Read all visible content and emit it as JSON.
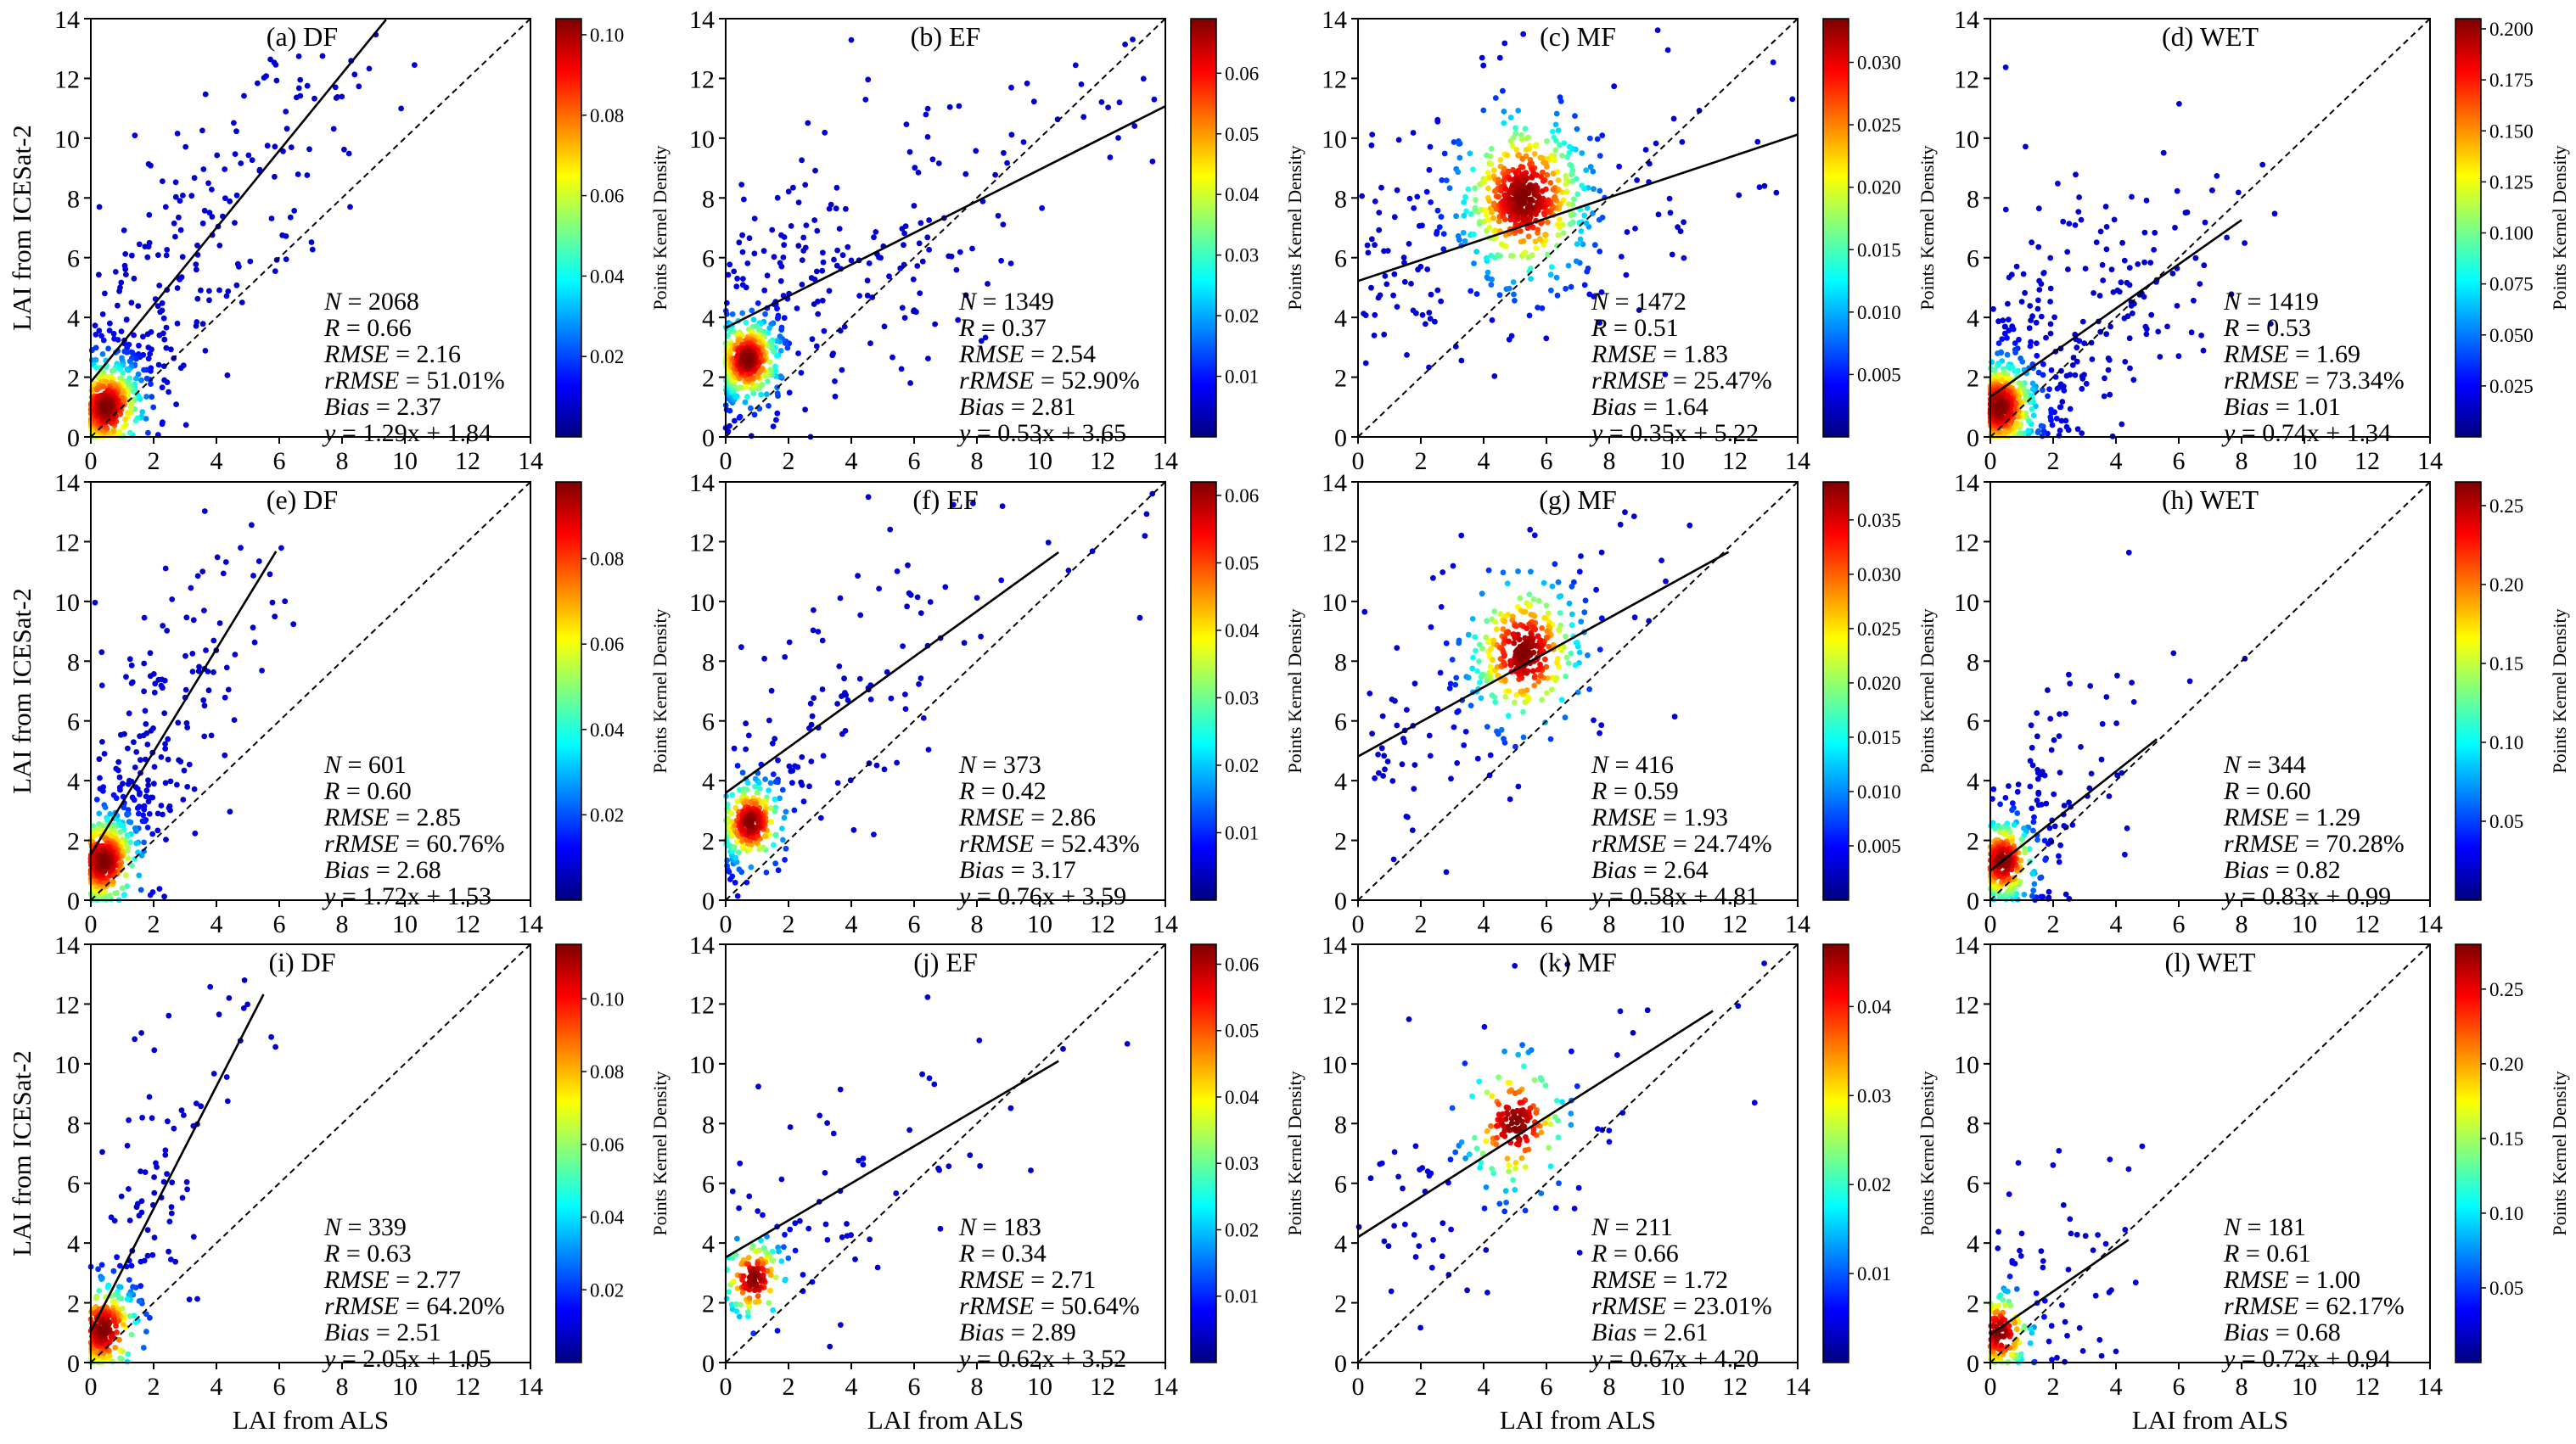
{
  "figure": {
    "xlabel": "LAI from ALS",
    "ylabel": "LAI from ICESat-2",
    "colorbar_label": "Points Kernel Density"
  },
  "chart_data": [
    {
      "id": "a",
      "type": "scatter",
      "title": "(a) DF",
      "xlim": [
        0,
        14
      ],
      "ylim": [
        0,
        14
      ],
      "ticks": [
        0,
        2,
        4,
        6,
        8,
        10,
        12,
        14
      ],
      "stats": {
        "N": "2068",
        "R": "0.66",
        "RMSE": "2.16",
        "rRMSE": "51.01%",
        "Bias": "2.37",
        "fit": "1.29x + 1.84"
      },
      "fit_slope": 1.29,
      "fit_intercept": 1.84,
      "fit_x_end": 9.4,
      "cbar_ticks": [
        "0.02",
        "0.04",
        "0.06",
        "0.08",
        "0.10"
      ],
      "cbar_max": 0.104,
      "cluster": {
        "x": 0.5,
        "y": 1.0,
        "spread": 1.8
      },
      "colorbar": true
    },
    {
      "id": "b",
      "type": "scatter",
      "title": "(b) EF",
      "xlim": [
        0,
        14
      ],
      "ylim": [
        0,
        14
      ],
      "ticks": [
        0,
        2,
        4,
        6,
        8,
        10,
        12,
        14
      ],
      "stats": {
        "N": "1349",
        "R": "0.37",
        "RMSE": "2.54",
        "rRMSE": "52.90%",
        "Bias": "2.81",
        "fit": "0.53x + 3.65"
      },
      "fit_slope": 0.53,
      "fit_intercept": 3.65,
      "fit_x_end": 14,
      "cbar_ticks": [
        "0.01",
        "0.02",
        "0.03",
        "0.04",
        "0.05",
        "0.06"
      ],
      "cbar_max": 0.069,
      "cluster": {
        "x": 0.7,
        "y": 2.6,
        "spread": 1.6
      },
      "colorbar": true
    },
    {
      "id": "c",
      "type": "scatter",
      "title": "(c) MF",
      "xlim": [
        0,
        14
      ],
      "ylim": [
        0,
        14
      ],
      "ticks": [
        0,
        2,
        4,
        6,
        8,
        10,
        12,
        14
      ],
      "stats": {
        "N": "1472",
        "R": "0.51",
        "RMSE": "1.83",
        "rRMSE": "25.47%",
        "Bias": "1.64",
        "fit": "0.35x + 5.22"
      },
      "fit_slope": 0.35,
      "fit_intercept": 5.22,
      "fit_x_end": 14,
      "cbar_ticks": [
        "0.005",
        "0.010",
        "0.015",
        "0.020",
        "0.025",
        "0.030"
      ],
      "cbar_max": 0.0335,
      "cluster": {
        "x": 5.3,
        "y": 8.0,
        "spread": 3.2
      },
      "colorbar": true
    },
    {
      "id": "d",
      "type": "scatter",
      "title": "(d) WET",
      "xlim": [
        0,
        14
      ],
      "ylim": [
        0,
        14
      ],
      "ticks": [
        0,
        2,
        4,
        6,
        8,
        10,
        12,
        14
      ],
      "stats": {
        "N": "1419",
        "R": "0.53",
        "RMSE": "1.69",
        "rRMSE": "73.34%",
        "Bias": "1.01",
        "fit": "0.74x + 1.34"
      },
      "fit_slope": 0.74,
      "fit_intercept": 1.34,
      "fit_x_end": 8,
      "cbar_ticks": [
        "0.025",
        "0.050",
        "0.075",
        "0.100",
        "0.125",
        "0.150",
        "0.175",
        "0.200"
      ],
      "cbar_max": 0.205,
      "cluster": {
        "x": 0.3,
        "y": 1.0,
        "spread": 1.8
      },
      "colorbar": true
    },
    {
      "id": "e",
      "type": "scatter",
      "title": "(e) DF",
      "xlim": [
        0,
        14
      ],
      "ylim": [
        0,
        14
      ],
      "ticks": [
        0,
        2,
        4,
        6,
        8,
        10,
        12,
        14
      ],
      "stats": {
        "N": "601",
        "R": "0.60",
        "RMSE": "2.85",
        "rRMSE": "60.76%",
        "Bias": "2.68",
        "fit": "1.72x + 1.53"
      },
      "fit_slope": 1.72,
      "fit_intercept": 1.53,
      "fit_x_end": 5.9,
      "cbar_ticks": [
        "0.02",
        "0.04",
        "0.06",
        "0.08"
      ],
      "cbar_max": 0.098,
      "cluster": {
        "x": 0.4,
        "y": 1.3,
        "spread": 1.8
      },
      "colorbar": true
    },
    {
      "id": "f",
      "type": "scatter",
      "title": "(f) EF",
      "xlim": [
        0,
        14
      ],
      "ylim": [
        0,
        14
      ],
      "ticks": [
        0,
        2,
        4,
        6,
        8,
        10,
        12,
        14
      ],
      "stats": {
        "N": "373",
        "R": "0.42",
        "RMSE": "2.86",
        "rRMSE": "52.43%",
        "Bias": "3.17",
        "fit": "0.76x + 3.59"
      },
      "fit_slope": 0.76,
      "fit_intercept": 3.59,
      "fit_x_end": 10.6,
      "cbar_ticks": [
        "0.01",
        "0.02",
        "0.03",
        "0.04",
        "0.05",
        "0.06"
      ],
      "cbar_max": 0.062,
      "cluster": {
        "x": 0.8,
        "y": 2.6,
        "spread": 1.6
      },
      "colorbar": true
    },
    {
      "id": "g",
      "type": "scatter",
      "title": "(g) MF",
      "xlim": [
        0,
        14
      ],
      "ylim": [
        0,
        14
      ],
      "ticks": [
        0,
        2,
        4,
        6,
        8,
        10,
        12,
        14
      ],
      "stats": {
        "N": "416",
        "R": "0.59",
        "RMSE": "1.93",
        "rRMSE": "24.74%",
        "Bias": "2.64",
        "fit": "0.58x + 4.81"
      },
      "fit_slope": 0.58,
      "fit_intercept": 4.81,
      "fit_x_end": 11.8,
      "cbar_ticks": [
        "0.005",
        "0.010",
        "0.015",
        "0.020",
        "0.025",
        "0.030",
        "0.035"
      ],
      "cbar_max": 0.0385,
      "cluster": {
        "x": 5.3,
        "y": 8.3,
        "spread": 2.8
      },
      "colorbar": true
    },
    {
      "id": "h",
      "type": "scatter",
      "title": "(h) WET",
      "xlim": [
        0,
        14
      ],
      "ylim": [
        0,
        14
      ],
      "ticks": [
        0,
        2,
        4,
        6,
        8,
        10,
        12,
        14
      ],
      "stats": {
        "N": "344",
        "R": "0.60",
        "RMSE": "1.29",
        "rRMSE": "70.28%",
        "Bias": "0.82",
        "fit": "0.83x + 0.99"
      },
      "fit_slope": 0.83,
      "fit_intercept": 0.99,
      "fit_x_end": 5.3,
      "cbar_ticks": [
        "0.05",
        "0.10",
        "0.15",
        "0.20",
        "0.25"
      ],
      "cbar_max": 0.265,
      "cluster": {
        "x": 0.4,
        "y": 1.3,
        "spread": 1.6
      },
      "colorbar": true
    },
    {
      "id": "i",
      "type": "scatter",
      "title": "(i) DF",
      "xlim": [
        0,
        14
      ],
      "ylim": [
        0,
        14
      ],
      "ticks": [
        0,
        2,
        4,
        6,
        8,
        10,
        12,
        14
      ],
      "stats": {
        "N": "339",
        "R": "0.63",
        "RMSE": "2.77",
        "rRMSE": "64.20%",
        "Bias": "2.51",
        "fit": "2.05x + 1.05"
      },
      "fit_slope": 2.05,
      "fit_intercept": 1.05,
      "fit_x_end": 5.5,
      "cbar_ticks": [
        "0.02",
        "0.04",
        "0.06",
        "0.08",
        "0.10"
      ],
      "cbar_max": 0.115,
      "cluster": {
        "x": 0.4,
        "y": 1.1,
        "spread": 1.8
      },
      "colorbar": true
    },
    {
      "id": "j",
      "type": "scatter",
      "title": "(j) EF",
      "xlim": [
        0,
        14
      ],
      "ylim": [
        0,
        14
      ],
      "ticks": [
        0,
        2,
        4,
        6,
        8,
        10,
        12,
        14
      ],
      "stats": {
        "N": "183",
        "R": "0.34",
        "RMSE": "2.71",
        "rRMSE": "50.64%",
        "Bias": "2.89",
        "fit": "0.62x + 3.52"
      },
      "fit_slope": 0.62,
      "fit_intercept": 3.52,
      "fit_x_end": 10.6,
      "cbar_ticks": [
        "0.01",
        "0.02",
        "0.03",
        "0.04",
        "0.05",
        "0.06"
      ],
      "cbar_max": 0.063,
      "cluster": {
        "x": 0.9,
        "y": 2.8,
        "spread": 1.6
      },
      "colorbar": true
    },
    {
      "id": "k",
      "type": "scatter",
      "title": "(k) MF",
      "xlim": [
        0,
        14
      ],
      "ylim": [
        0,
        14
      ],
      "ticks": [
        0,
        2,
        4,
        6,
        8,
        10,
        12,
        14
      ],
      "stats": {
        "N": "211",
        "R": "0.66",
        "RMSE": "1.72",
        "rRMSE": "23.01%",
        "Bias": "2.61",
        "fit": "0.67x + 4.20"
      },
      "fit_slope": 0.67,
      "fit_intercept": 4.2,
      "fit_x_end": 11.3,
      "cbar_ticks": [
        "0.01",
        "0.02",
        "0.03",
        "0.04"
      ],
      "cbar_max": 0.047,
      "cluster": {
        "x": 5.0,
        "y": 8.0,
        "spread": 2.6
      },
      "colorbar": true
    },
    {
      "id": "l",
      "type": "scatter",
      "title": "(l) WET",
      "xlim": [
        0,
        14
      ],
      "ylim": [
        0,
        14
      ],
      "ticks": [
        0,
        2,
        4,
        6,
        8,
        10,
        12,
        14
      ],
      "stats": {
        "N": "181",
        "R": "0.61",
        "RMSE": "1.00",
        "rRMSE": "62.17%",
        "Bias": "0.68",
        "fit": "0.72x + 0.94"
      },
      "fit_slope": 0.72,
      "fit_intercept": 0.94,
      "fit_x_end": 4.4,
      "cbar_ticks": [
        "0.05",
        "0.10",
        "0.15",
        "0.20",
        "0.25"
      ],
      "cbar_max": 0.28,
      "cluster": {
        "x": 0.3,
        "y": 1.0,
        "spread": 1.6
      },
      "colorbar": true
    }
  ]
}
